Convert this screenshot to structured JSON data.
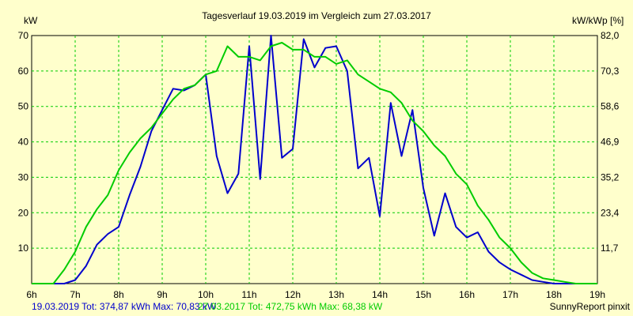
{
  "chart_data": {
    "type": "line",
    "title": "Tagesverlauf 19.03.2019 im Vergleich zum 27.03.2017",
    "ylabel_left": "kW",
    "ylabel_right": "kW/kWp [%]",
    "xlim": [
      6,
      19
    ],
    "ylim": [
      0,
      70
    ],
    "y2lim": [
      0,
      82.0
    ],
    "x_ticks": [
      "6h",
      "7h",
      "8h",
      "9h",
      "10h",
      "11h",
      "12h",
      "13h",
      "14h",
      "15h",
      "16h",
      "17h",
      "18h",
      "19h"
    ],
    "y_ticks": [
      10,
      20,
      30,
      40,
      50,
      60,
      70
    ],
    "y2_ticks": [
      "11,7",
      "23,4",
      "35,2",
      "46,9",
      "58,6",
      "70,3",
      "82,0"
    ],
    "grid": true,
    "series": [
      {
        "name": "19.03.2019",
        "color": "#0000cc",
        "x": [
          6,
          6.5,
          6.75,
          7,
          7.25,
          7.5,
          7.75,
          8,
          8.25,
          8.5,
          8.75,
          9,
          9.25,
          9.5,
          9.75,
          10,
          10.25,
          10.5,
          10.75,
          11,
          11.25,
          11.5,
          11.75,
          12,
          12.25,
          12.5,
          12.75,
          13,
          13.25,
          13.5,
          13.75,
          14,
          14.25,
          14.5,
          14.75,
          15,
          15.25,
          15.5,
          15.75,
          16,
          16.25,
          16.5,
          16.75,
          17,
          17.25,
          17.5,
          17.75,
          18,
          18.25,
          18.5,
          18.75,
          19
        ],
        "y": [
          0,
          0,
          0,
          1,
          5,
          11,
          14,
          16,
          25,
          33,
          43,
          49,
          55,
          54.5,
          56,
          59,
          36,
          25.5,
          31,
          67,
          29.5,
          71,
          35.5,
          38,
          69,
          61,
          66.5,
          67,
          60,
          32.5,
          35.5,
          19,
          51,
          36,
          49,
          27,
          13.5,
          25.5,
          16,
          13,
          14.5,
          9,
          6,
          4,
          2.5,
          1,
          0.5,
          0,
          0,
          0,
          0,
          0
        ]
      },
      {
        "name": "27.03.2017",
        "color": "#00cc00",
        "x": [
          6,
          6.5,
          6.75,
          7,
          7.25,
          7.5,
          7.75,
          8,
          8.25,
          8.5,
          8.75,
          9,
          9.25,
          9.5,
          9.75,
          10,
          10.25,
          10.5,
          10.75,
          11,
          11.25,
          11.5,
          11.75,
          12,
          12.25,
          12.5,
          12.75,
          13,
          13.25,
          13.5,
          13.75,
          14,
          14.25,
          14.5,
          14.75,
          15,
          15.25,
          15.5,
          15.75,
          16,
          16.25,
          16.5,
          16.75,
          17,
          17.25,
          17.5,
          17.75,
          18,
          18.25,
          18.5,
          18.75,
          19
        ],
        "y": [
          0,
          0,
          4,
          9,
          16,
          21,
          25,
          32,
          37,
          41,
          44,
          48,
          52,
          55,
          56,
          59,
          60,
          67,
          64,
          64,
          63,
          67,
          68,
          66,
          66,
          64,
          64,
          62,
          63,
          59,
          57,
          55,
          54,
          51,
          46,
          43,
          39,
          36,
          31,
          28,
          22,
          18,
          13,
          10,
          6,
          3,
          1.5,
          1,
          0.5,
          0,
          0,
          0
        ]
      }
    ],
    "footer": {
      "series1_summary": "19.03.2019 Tot: 374,87 kWh Max: 70,83 kW",
      "series2_summary": "27.03.2017 Tot: 472,75 kWh Max: 68,38 kW",
      "credit": "SunnyReport pinxit"
    }
  }
}
